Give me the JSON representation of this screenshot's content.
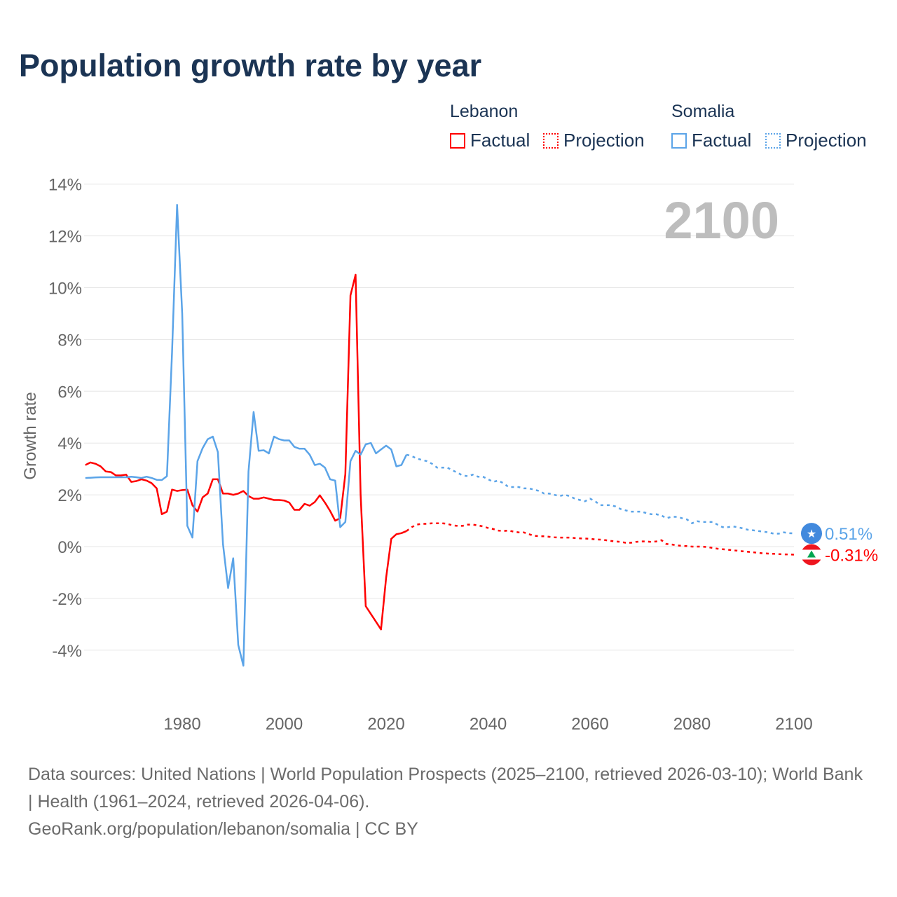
{
  "title": "Population growth rate by year",
  "legend": {
    "groups": [
      {
        "name": "Lebanon",
        "factual": "Factual",
        "projection": "Projection",
        "color": "#ff0000"
      },
      {
        "name": "Somalia",
        "factual": "Factual",
        "projection": "Projection",
        "color": "#5ba4e8"
      }
    ]
  },
  "current_year": "2100",
  "end_labels": {
    "somalia": "0.51%",
    "lebanon": "-0.31%"
  },
  "footer": {
    "line1": "Data sources: United Nations | World Population Prospects (2025–2100, retrieved 2026-03-10); World Bank | Health (1961–2024, retrieved 2026-04-06).",
    "line2": "GeoRank.org/population/lebanon/somalia | CC BY"
  },
  "chart_data": {
    "type": "line",
    "title": "Population growth rate by year",
    "xlabel": "",
    "ylabel": "Growth rate",
    "xlim": [
      1961,
      2100
    ],
    "ylim": [
      -5,
      14
    ],
    "x_ticks": [
      "1980",
      "2000",
      "2020",
      "2040",
      "2060",
      "2080",
      "2100"
    ],
    "x_tick_values": [
      1980,
      2000,
      2020,
      2040,
      2060,
      2080,
      2100
    ],
    "y_ticks": [
      "14%",
      "12%",
      "10%",
      "8%",
      "6%",
      "4%",
      "2%",
      "0%",
      "-2%",
      "-4%"
    ],
    "y_tick_values": [
      14,
      12,
      10,
      8,
      6,
      4,
      2,
      0,
      -2,
      -4
    ],
    "grid": true,
    "series": [
      {
        "name": "Lebanon",
        "color": "#ff0000",
        "factual_start": 1961,
        "factual": [
          3.15,
          3.25,
          3.2,
          3.1,
          2.9,
          2.88,
          2.75,
          2.75,
          2.78,
          2.5,
          2.53,
          2.6,
          2.55,
          2.45,
          2.25,
          1.25,
          1.35,
          2.2,
          2.15,
          2.18,
          2.2,
          1.6,
          1.35,
          1.9,
          2.05,
          2.6,
          2.6,
          2.05,
          2.05,
          2.0,
          2.05,
          2.15,
          1.95,
          1.85,
          1.85,
          1.9,
          1.85,
          1.8,
          1.8,
          1.78,
          1.7,
          1.42,
          1.42,
          1.65,
          1.58,
          1.72,
          1.98,
          1.7,
          1.38,
          1.0,
          1.1,
          2.8,
          9.7,
          10.5,
          2.0,
          -2.3,
          -2.6,
          -2.9,
          -3.2,
          -1.2,
          0.3,
          0.48,
          0.52,
          0.6
        ],
        "projection_start": 2024,
        "projection": [
          0.6,
          0.75,
          0.85,
          0.88,
          0.88,
          0.9,
          0.9,
          0.9,
          0.88,
          0.82,
          0.8,
          0.8,
          0.85,
          0.85,
          0.82,
          0.78,
          0.72,
          0.68,
          0.62,
          0.6,
          0.62,
          0.58,
          0.55,
          0.55,
          0.48,
          0.42,
          0.4,
          0.4,
          0.38,
          0.36,
          0.35,
          0.35,
          0.35,
          0.33,
          0.32,
          0.31,
          0.3,
          0.28,
          0.27,
          0.25,
          0.22,
          0.2,
          0.18,
          0.15,
          0.15,
          0.18,
          0.2,
          0.2,
          0.18,
          0.2,
          0.25,
          0.1,
          0.08,
          0.05,
          0.03,
          0.02,
          0.0,
          0.0,
          0.0,
          -0.02,
          -0.05,
          -0.08,
          -0.1,
          -0.12,
          -0.14,
          -0.16,
          -0.18,
          -0.2,
          -0.22,
          -0.24,
          -0.26,
          -0.27,
          -0.28,
          -0.29,
          -0.3,
          -0.3,
          -0.31
        ]
      },
      {
        "name": "Somalia",
        "color": "#5ba4e8",
        "factual_start": 1961,
        "factual": [
          2.65,
          2.66,
          2.67,
          2.68,
          2.68,
          2.68,
          2.68,
          2.68,
          2.68,
          2.7,
          2.68,
          2.65,
          2.7,
          2.65,
          2.58,
          2.57,
          2.72,
          7.5,
          13.2,
          9.0,
          0.8,
          0.35,
          3.3,
          3.8,
          4.15,
          4.25,
          3.65,
          0.1,
          -1.6,
          -0.45,
          -3.8,
          -4.6,
          2.9,
          5.2,
          3.7,
          3.72,
          3.6,
          4.25,
          4.15,
          4.1,
          4.1,
          3.85,
          3.78,
          3.78,
          3.55,
          3.15,
          3.2,
          3.05,
          2.6,
          2.55,
          0.75,
          0.95,
          3.3,
          3.7,
          3.55,
          3.95,
          4.0,
          3.6,
          3.75,
          3.9,
          3.75,
          3.1,
          3.15,
          3.55
        ],
        "projection_start": 2024,
        "projection": [
          3.55,
          3.5,
          3.4,
          3.35,
          3.3,
          3.2,
          3.05,
          3.05,
          3.05,
          2.95,
          2.85,
          2.75,
          2.72,
          2.78,
          2.7,
          2.7,
          2.6,
          2.5,
          2.55,
          2.45,
          2.3,
          2.3,
          2.3,
          2.25,
          2.25,
          2.2,
          2.15,
          2.05,
          2.05,
          2.0,
          1.95,
          2.0,
          1.95,
          1.85,
          1.8,
          1.75,
          1.85,
          1.75,
          1.6,
          1.6,
          1.6,
          1.55,
          1.45,
          1.4,
          1.35,
          1.35,
          1.35,
          1.3,
          1.25,
          1.25,
          1.2,
          1.1,
          1.15,
          1.15,
          1.1,
          1.05,
          0.9,
          0.98,
          0.95,
          0.95,
          0.95,
          0.85,
          0.75,
          0.75,
          0.78,
          0.75,
          0.7,
          0.65,
          0.63,
          0.6,
          0.58,
          0.55,
          0.5,
          0.5,
          0.55,
          0.52,
          0.51
        ]
      }
    ]
  }
}
